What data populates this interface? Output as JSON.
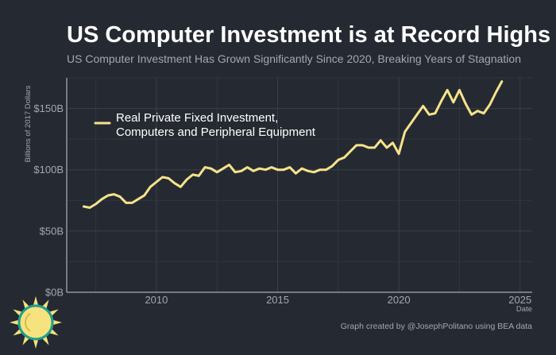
{
  "header": {
    "title": "US Computer Investment is at Record Highs",
    "subtitle": "US Computer Investment Has Grown Significantly Since 2020, Breaking Years of Stagnation"
  },
  "footer": {
    "credit": "Graph created by @JosephPolitano using BEA data"
  },
  "colors": {
    "background": "#252a32",
    "line": "#f7e38a",
    "grid": "#3a3f48",
    "text_muted": "#a3a8b0"
  },
  "icons": {
    "logo": "sun-icon"
  },
  "chart_data": {
    "type": "line",
    "title": "US Computer Investment is at Record Highs",
    "subtitle": "US Computer Investment Has Grown Significantly Since 2020, Breaking Years of Stagnation",
    "xlabel": "Date",
    "ylabel": "Billions of 2017 Dollars",
    "xlim": [
      2006.3,
      2025.5
    ],
    "ylim": [
      0,
      175
    ],
    "x_ticks": [
      2010,
      2015,
      2020,
      2025
    ],
    "x_tick_labels": [
      "2010",
      "2015",
      "2020",
      "2025"
    ],
    "y_ticks": [
      0,
      50,
      100,
      150
    ],
    "y_tick_labels": [
      "$0B",
      "$50B",
      "$100B",
      "$150B"
    ],
    "grid": true,
    "legend_position": "top-left",
    "series": [
      {
        "name": "Real Private Fixed Investment, Computers and Peripheral Equipment",
        "label_lines": [
          "Real Private Fixed Investment,",
          "Computers and Peripheral Equipment"
        ],
        "color": "#f7e38a",
        "x": [
          2007.0,
          2007.25,
          2007.5,
          2007.75,
          2008.0,
          2008.25,
          2008.5,
          2008.75,
          2009.0,
          2009.25,
          2009.5,
          2009.75,
          2010.0,
          2010.25,
          2010.5,
          2010.75,
          2011.0,
          2011.25,
          2011.5,
          2011.75,
          2012.0,
          2012.25,
          2012.5,
          2012.75,
          2013.0,
          2013.25,
          2013.5,
          2013.75,
          2014.0,
          2014.25,
          2014.5,
          2014.75,
          2015.0,
          2015.25,
          2015.5,
          2015.75,
          2016.0,
          2016.25,
          2016.5,
          2016.75,
          2017.0,
          2017.25,
          2017.5,
          2017.75,
          2018.0,
          2018.25,
          2018.5,
          2018.75,
          2019.0,
          2019.25,
          2019.5,
          2019.75,
          2020.0,
          2020.25,
          2020.5,
          2020.75,
          2021.0,
          2021.25,
          2021.5,
          2021.75,
          2022.0,
          2022.25,
          2022.5,
          2022.75,
          2023.0,
          2023.25,
          2023.5,
          2023.75,
          2024.0,
          2024.25
        ],
        "values": [
          70,
          69,
          72,
          76,
          79,
          80,
          78,
          73,
          73,
          76,
          79,
          86,
          90,
          94,
          93,
          89,
          86,
          92,
          96,
          95,
          102,
          101,
          98,
          101,
          104,
          98,
          99,
          102,
          99,
          101,
          100,
          102,
          100,
          100,
          102,
          97,
          101,
          99,
          98,
          100,
          100,
          103,
          108,
          110,
          115,
          120,
          120,
          118,
          118,
          124,
          118,
          122,
          113,
          131,
          138,
          145,
          152,
          145,
          146,
          156,
          165,
          155,
          165,
          154,
          145,
          148,
          146,
          153,
          163,
          172
        ]
      }
    ]
  }
}
